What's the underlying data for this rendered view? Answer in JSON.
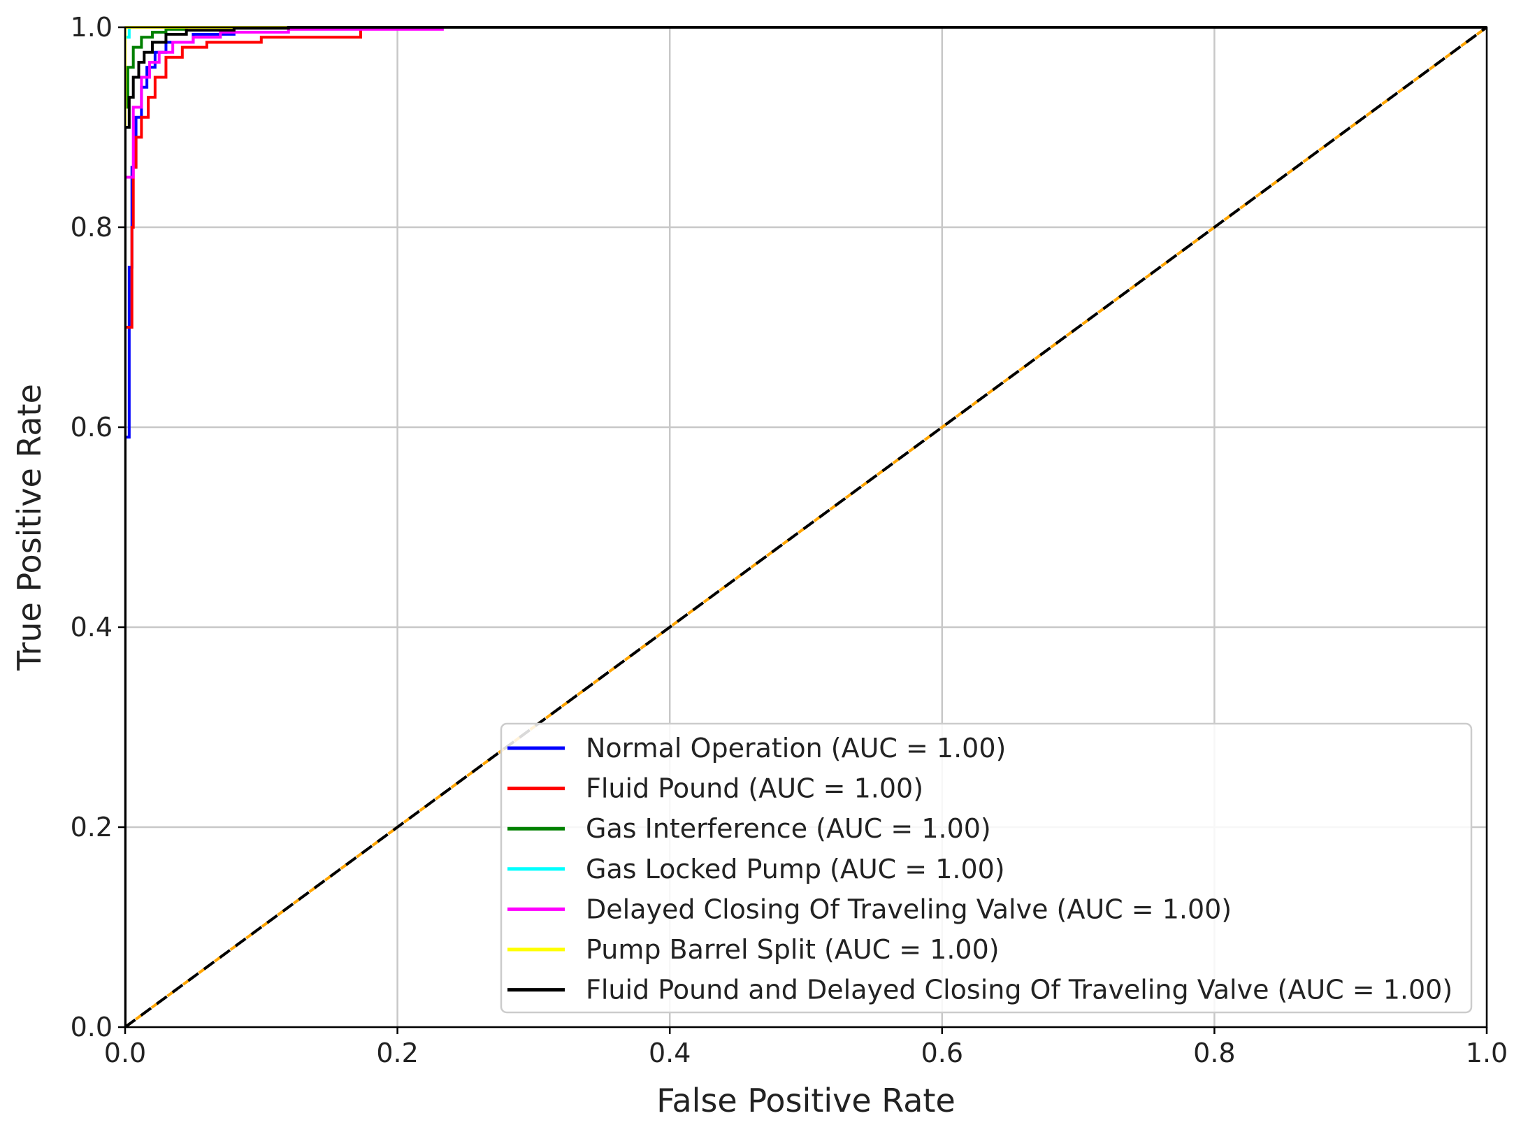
{
  "chart_data": {
    "type": "line",
    "title": "",
    "xlabel": "False Positive Rate",
    "ylabel": "True Positive Rate",
    "xlim": [
      0,
      1
    ],
    "ylim": [
      0,
      1
    ],
    "xticks": [
      0.0,
      0.2,
      0.4,
      0.6,
      0.8,
      1.0
    ],
    "yticks": [
      0.0,
      0.2,
      0.4,
      0.6,
      0.8,
      1.0
    ],
    "xtick_labels": [
      "0.0",
      "0.2",
      "0.4",
      "0.6",
      "0.8",
      "1.0"
    ],
    "ytick_labels": [
      "0.0",
      "0.2",
      "0.4",
      "0.6",
      "0.8",
      "1.0"
    ],
    "grid": true,
    "legend_position": "lower-right",
    "series": [
      {
        "name": "Normal Operation (AUC = 1.00)",
        "color": "#0000ff",
        "x": [
          0,
          0,
          0.003,
          0.003,
          0.005,
          0.005,
          0.008,
          0.008,
          0.012,
          0.012,
          0.016,
          0.016,
          0.022,
          0.022,
          0.03,
          0.03,
          0.05,
          0.05,
          0.08,
          0.08,
          1.0
        ],
        "y": [
          0,
          0.59,
          0.59,
          0.76,
          0.76,
          0.86,
          0.86,
          0.91,
          0.91,
          0.94,
          0.94,
          0.96,
          0.96,
          0.975,
          0.975,
          0.985,
          0.985,
          0.993,
          0.993,
          1.0,
          1.0
        ]
      },
      {
        "name": "Fluid Pound (AUC = 1.00)",
        "color": "#ff0000",
        "x": [
          0,
          0,
          0.005,
          0.005,
          0.006,
          0.006,
          0.008,
          0.008,
          0.012,
          0.012,
          0.017,
          0.017,
          0.022,
          0.022,
          0.03,
          0.03,
          0.042,
          0.042,
          0.06,
          0.06,
          0.1,
          0.1,
          0.173,
          0.173,
          1.0
        ],
        "y": [
          0,
          0.7,
          0.7,
          0.8,
          0.8,
          0.86,
          0.86,
          0.89,
          0.89,
          0.91,
          0.91,
          0.93,
          0.93,
          0.95,
          0.95,
          0.97,
          0.97,
          0.98,
          0.98,
          0.985,
          0.985,
          0.99,
          0.99,
          1.0,
          1.0
        ]
      },
      {
        "name": "Gas Interference (AUC = 1.00)",
        "color": "#008000",
        "x": [
          0,
          0,
          0.002,
          0.002,
          0.006,
          0.006,
          0.012,
          0.012,
          0.02,
          0.02,
          0.03,
          0.03,
          0.045,
          0.045,
          1.0
        ],
        "y": [
          0,
          0.92,
          0.92,
          0.96,
          0.96,
          0.98,
          0.98,
          0.99,
          0.99,
          0.995,
          0.995,
          0.998,
          0.998,
          1.0,
          1.0
        ]
      },
      {
        "name": "Gas Locked Pump (AUC = 1.00)",
        "color": "#00ffff",
        "x": [
          0,
          0,
          0.003,
          0.003,
          1.0
        ],
        "y": [
          0,
          0.99,
          0.99,
          1.0,
          1.0
        ]
      },
      {
        "name": "Delayed Closing Of Traveling Valve (AUC = 1.00)",
        "color": "#ff00ff",
        "x": [
          0,
          0,
          0.006,
          0.006,
          0.012,
          0.012,
          0.018,
          0.018,
          0.025,
          0.025,
          0.035,
          0.035,
          0.05,
          0.05,
          0.07,
          0.07,
          0.12,
          0.12,
          0.233,
          0.233,
          1.0
        ],
        "y": [
          0,
          0.85,
          0.85,
          0.92,
          0.92,
          0.95,
          0.95,
          0.965,
          0.965,
          0.975,
          0.975,
          0.985,
          0.985,
          0.99,
          0.99,
          0.995,
          0.995,
          0.998,
          0.998,
          1.0,
          1.0
        ]
      },
      {
        "name": "Pump Barrel Split (AUC = 1.00)",
        "color": "#ffff00",
        "x": [
          0,
          0,
          1.0
        ],
        "y": [
          0,
          1.0,
          1.0
        ]
      },
      {
        "name": "Fluid Pound and Delayed Closing Of Traveling Valve (AUC = 1.00)",
        "color": "#000000",
        "x": [
          0,
          0,
          0.003,
          0.003,
          0.006,
          0.006,
          0.01,
          0.01,
          0.014,
          0.014,
          0.02,
          0.02,
          0.03,
          0.03,
          0.045,
          0.045,
          0.08,
          0.08,
          0.12,
          0.12,
          1.0
        ],
        "y": [
          0,
          0.9,
          0.9,
          0.93,
          0.93,
          0.95,
          0.95,
          0.965,
          0.965,
          0.975,
          0.975,
          0.985,
          0.985,
          0.993,
          0.993,
          0.997,
          0.997,
          0.999,
          0.999,
          1.0,
          1.0
        ]
      }
    ],
    "reference_line": {
      "x": [
        0,
        1
      ],
      "y": [
        0,
        1
      ],
      "style": "dashed",
      "colors": [
        "#000000",
        "#ffa500"
      ]
    }
  }
}
